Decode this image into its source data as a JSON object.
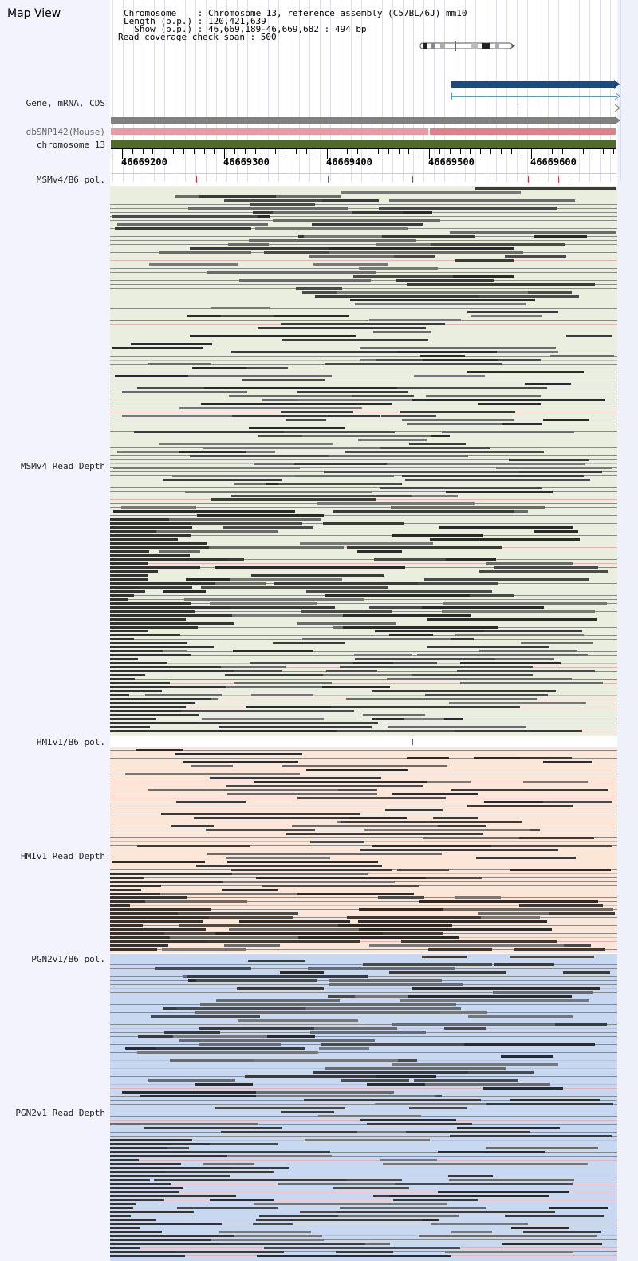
{
  "map_view": {
    "title": "Map View"
  },
  "header_info": {
    "line1": "Chromosome    : Chromosome 13, reference assembly (C57BL/6J) mm10",
    "line2": "Length (b.p.) : 120,421,639",
    "line3": "  Show (b.p.) : 46,669,189-46,669,682 : 494 bp",
    "line4": "Read coverage check span : 500"
  },
  "tracks": {
    "gene": "Gene, mRNA, CDS",
    "dbsnp": "dbSNP142(Mouse)",
    "chromosome": "chromosome 13",
    "msm_pol": "MSMv4/B6 pol.",
    "msm_depth": "MSMv4 Read Depth",
    "hmi_pol": "HMIv1/B6 pol.",
    "hmi_depth": "HMIv1 Read Depth",
    "pgn_pol": "PGN2v1/B6 pol.",
    "pgn_depth": "PGN2v1 Read Depth"
  },
  "ruler": {
    "labels": [
      "46669200",
      "46669300",
      "46669400",
      "46669500",
      "46669600"
    ]
  },
  "colors": {
    "gene_bar": "#1e4a7c",
    "mrna": "#4aa0c0",
    "cds": "#6a8a40",
    "gray_track": "#808080",
    "dbsnp": "#e89aa0",
    "chromosome": "#4e6b2a",
    "snp_mark": "#e03030",
    "msm_bg": "#eaeedf",
    "hmi_bg": "#fbe6d8",
    "pgn_bg": "#c8d8f0"
  }
}
